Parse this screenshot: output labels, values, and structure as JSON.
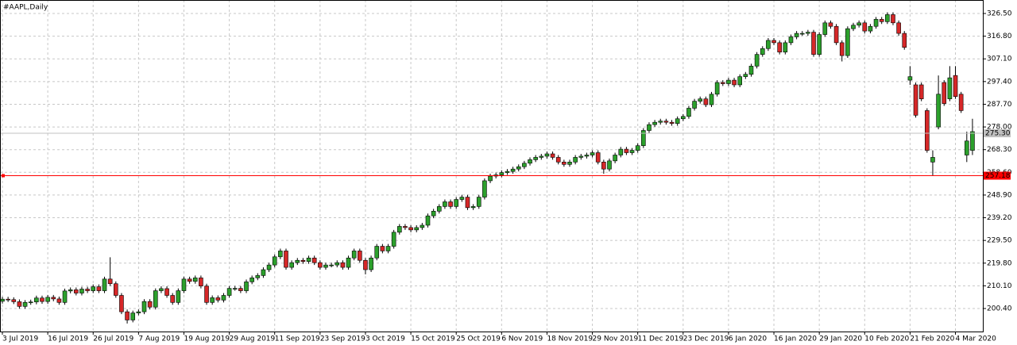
{
  "chart_data": {
    "type": "candlestick",
    "title": "#AAPL,Daily",
    "categories": [
      "3 Jul 2019",
      null,
      null,
      null,
      null,
      null,
      null,
      null,
      "16 Jul 2019",
      null,
      null,
      null,
      null,
      null,
      null,
      null,
      "26 Jul 2019",
      null,
      null,
      null,
      null,
      null,
      null,
      null,
      "7 Aug 2019",
      null,
      null,
      null,
      null,
      null,
      null,
      null,
      "19 Aug 2019",
      null,
      null,
      null,
      null,
      null,
      null,
      null,
      "29 Aug 2019",
      null,
      null,
      null,
      null,
      null,
      null,
      null,
      "11 Sep 2019",
      null,
      null,
      null,
      null,
      null,
      null,
      null,
      "23 Sep 2019",
      null,
      null,
      null,
      null,
      null,
      null,
      null,
      "3 Oct 2019",
      null,
      null,
      null,
      null,
      null,
      null,
      null,
      "15 Oct 2019",
      null,
      null,
      null,
      null,
      null,
      null,
      null,
      "25 Oct 2019",
      null,
      null,
      null,
      null,
      null,
      null,
      null,
      "6 Nov 2019",
      null,
      null,
      null,
      null,
      null,
      null,
      null,
      "18 Nov 2019",
      null,
      null,
      null,
      null,
      null,
      null,
      null,
      "29 Nov 2019",
      null,
      null,
      null,
      null,
      null,
      null,
      null,
      "11 Dec 2019",
      null,
      null,
      null,
      null,
      null,
      null,
      null,
      "23 Dec 2019",
      null,
      null,
      null,
      null,
      null,
      null,
      null,
      "6 Jan 2020",
      null,
      null,
      null,
      null,
      null,
      null,
      null,
      "16 Jan 2020",
      null,
      null,
      null,
      null,
      null,
      null,
      null,
      "29 Jan 2020",
      null,
      null,
      null,
      null,
      null,
      null,
      null,
      "10 Feb 2020",
      null,
      null,
      null,
      null,
      null,
      null,
      null,
      "21 Feb 2020",
      null,
      null,
      null,
      null,
      null,
      null,
      null,
      "4 Mar 2020",
      null,
      null,
      null
    ],
    "open": [
      203.5,
      204.4,
      204.2,
      203.3,
      201.3,
      203.0,
      203.2,
      204.9,
      203.4,
      205.2,
      204.5,
      203.0,
      207.9,
      208.4,
      207.0,
      208.7,
      208.0,
      209.7,
      208.0,
      213.0,
      211.0,
      206.0,
      199.0,
      195.5,
      198.5,
      199.0,
      203.4,
      201.0,
      208.0,
      208.9,
      206.0,
      203.0,
      208.0,
      213.0,
      212.0,
      213.5,
      210.0,
      203.0,
      205.0,
      204.0,
      206.0,
      209.0,
      209.0,
      208.0,
      211.8,
      213.5,
      214.5,
      217.0,
      219.0,
      222.5,
      225.0,
      218.0,
      220.0,
      221.0,
      220.5,
      222.0,
      220.0,
      218.0,
      219.0,
      219.0,
      220.0,
      218.0,
      222.0,
      225.0,
      221.0,
      217.0,
      222.0,
      227.0,
      225.0,
      227.0,
      233.0,
      235.5,
      235.0,
      234.0,
      235.0,
      236.0,
      240.0,
      242.0,
      244.0,
      246.0,
      244.0,
      247.0,
      248.0,
      243.5,
      244.0,
      248.0,
      255.0,
      257.0,
      257.5,
      258.5,
      259.0,
      260.0,
      261.0,
      262.5,
      264.0,
      265.0,
      265.5,
      266.5,
      265.0,
      263.0,
      262.0,
      263.0,
      265.0,
      265.5,
      266.0,
      267.0,
      263.0,
      260.0,
      263.5,
      266.0,
      268.5,
      267.0,
      268.0,
      270.0,
      276.5,
      279.0,
      280.0,
      280.5,
      280.0,
      279.5,
      281.5,
      282.5,
      286.0,
      289.0,
      290.0,
      287.5,
      292.0,
      297.0,
      296.5,
      298.0,
      296.0,
      299.5,
      300.5,
      304.0,
      309.0,
      311.5,
      315.0,
      314.0,
      310.0,
      314.0,
      316.5,
      318.0,
      318.0,
      318.5,
      309.0,
      317.5,
      322.5,
      321.0,
      314.0,
      308.5,
      320.0,
      321.5,
      322.5,
      319.0,
      321.0,
      324.0,
      323.0,
      326.0,
      322.5,
      318.0,
      298.0,
      296.0,
      296.0,
      285.0,
      263.0,
      278.0,
      297.0,
      290.0,
      300.0,
      292.0,
      266.0,
      268.0
    ],
    "high": [
      205.4,
      205.4,
      205.2,
      204.3,
      204.0,
      204.2,
      205.9,
      205.9,
      206.2,
      206.2,
      205.5,
      208.9,
      209.4,
      209.4,
      209.7,
      209.7,
      210.7,
      210.7,
      214.0,
      222.3,
      212.0,
      207.0,
      200.0,
      199.5,
      200.0,
      204.4,
      204.4,
      209.0,
      209.9,
      209.9,
      207.0,
      209.0,
      214.0,
      214.0,
      214.5,
      214.5,
      211.0,
      206.0,
      206.0,
      207.0,
      210.0,
      210.0,
      210.0,
      212.8,
      214.5,
      215.5,
      218.0,
      220.0,
      223.5,
      226.0,
      226.0,
      221.0,
      222.0,
      222.0,
      223.0,
      223.0,
      221.0,
      220.0,
      220.0,
      221.0,
      221.0,
      223.0,
      226.0,
      226.0,
      222.0,
      223.0,
      228.0,
      228.0,
      228.0,
      234.0,
      236.5,
      236.5,
      236.0,
      236.0,
      237.0,
      241.0,
      243.0,
      245.0,
      247.0,
      247.0,
      248.0,
      249.0,
      249.0,
      245.0,
      249.0,
      256.0,
      258.0,
      258.5,
      259.5,
      260.0,
      261.0,
      262.0,
      263.5,
      265.0,
      266.0,
      266.5,
      267.5,
      267.5,
      266.0,
      264.0,
      264.0,
      266.0,
      266.5,
      267.0,
      268.0,
      268.0,
      264.0,
      264.5,
      267.0,
      269.5,
      269.5,
      269.0,
      271.0,
      277.5,
      280.0,
      281.0,
      281.5,
      281.5,
      281.0,
      282.5,
      283.5,
      287.0,
      290.0,
      291.0,
      291.0,
      293.0,
      298.0,
      298.0,
      299.0,
      299.0,
      300.5,
      301.5,
      305.0,
      310.0,
      312.5,
      316.0,
      316.0,
      315.0,
      315.0,
      317.5,
      319.0,
      319.0,
      319.5,
      319.5,
      318.5,
      323.5,
      323.5,
      322.0,
      315.0,
      321.0,
      322.5,
      323.5,
      323.5,
      322.0,
      325.0,
      325.0,
      327.0,
      327.0,
      323.5,
      319.0,
      304.0,
      297.0,
      297.0,
      286.0,
      268.0,
      300.0,
      298.0,
      304.0,
      304.0,
      293.0,
      276.0,
      281.5
    ],
    "low": [
      202.5,
      203.2,
      202.3,
      200.3,
      200.3,
      202.0,
      202.2,
      202.4,
      202.4,
      203.5,
      202.0,
      202.0,
      206.9,
      206.0,
      206.0,
      207.0,
      207.0,
      207.0,
      207.0,
      210.0,
      205.0,
      198.0,
      194.0,
      194.5,
      197.5,
      198.0,
      200.0,
      200.0,
      207.0,
      205.0,
      202.0,
      202.0,
      207.0,
      211.0,
      211.0,
      209.0,
      202.0,
      202.0,
      203.0,
      203.0,
      205.0,
      208.0,
      207.0,
      207.0,
      210.8,
      212.5,
      213.5,
      216.0,
      218.0,
      221.5,
      217.0,
      217.0,
      219.0,
      219.5,
      219.5,
      219.0,
      217.0,
      217.0,
      218.0,
      218.0,
      217.0,
      217.0,
      221.0,
      220.0,
      215.0,
      216.0,
      221.0,
      224.0,
      224.0,
      226.0,
      232.0,
      234.0,
      233.0,
      233.0,
      234.0,
      235.0,
      239.0,
      241.0,
      243.0,
      243.0,
      243.0,
      246.0,
      242.5,
      242.5,
      243.0,
      247.0,
      254.0,
      256.0,
      256.5,
      257.5,
      258.0,
      259.0,
      260.0,
      261.5,
      263.0,
      264.0,
      264.5,
      264.0,
      262.0,
      261.0,
      261.0,
      262.0,
      264.0,
      264.5,
      265.0,
      262.0,
      258.0,
      259.0,
      262.5,
      265.0,
      266.0,
      266.0,
      267.0,
      269.0,
      275.5,
      278.0,
      279.0,
      279.0,
      278.5,
      278.5,
      280.5,
      281.5,
      285.0,
      288.0,
      286.5,
      286.5,
      291.0,
      295.5,
      295.5,
      295.0,
      295.0,
      298.5,
      299.5,
      303.0,
      308.0,
      310.5,
      313.0,
      309.0,
      309.0,
      313.0,
      315.5,
      317.0,
      317.0,
      308.0,
      308.0,
      316.5,
      320.0,
      313.0,
      306.0,
      307.5,
      319.0,
      320.5,
      318.0,
      318.0,
      320.0,
      322.0,
      322.0,
      321.5,
      317.0,
      311.0,
      296.0,
      282.0,
      289.0,
      267.0,
      257.2,
      277.0,
      287.0,
      289.0,
      290.0,
      284.0,
      263.0,
      266.0
    ],
    "close": [
      204.4,
      204.2,
      203.3,
      201.3,
      203.0,
      203.2,
      204.9,
      203.4,
      205.2,
      204.5,
      203.0,
      207.9,
      208.4,
      207.0,
      208.7,
      208.0,
      209.7,
      208.0,
      213.0,
      211.0,
      206.0,
      199.0,
      195.5,
      198.5,
      199.0,
      203.4,
      201.0,
      208.0,
      208.9,
      206.0,
      203.0,
      208.0,
      213.0,
      212.0,
      213.5,
      210.0,
      203.0,
      205.0,
      204.0,
      206.0,
      209.0,
      209.0,
      208.0,
      211.8,
      213.5,
      214.5,
      217.0,
      219.0,
      222.5,
      225.0,
      218.0,
      220.0,
      221.0,
      220.5,
      222.0,
      220.0,
      218.0,
      219.0,
      219.0,
      220.0,
      218.0,
      222.0,
      225.0,
      221.0,
      217.0,
      222.0,
      227.0,
      225.0,
      227.0,
      233.0,
      235.5,
      235.0,
      234.0,
      235.0,
      236.0,
      240.0,
      242.0,
      244.0,
      246.0,
      244.0,
      247.0,
      248.0,
      243.5,
      244.0,
      248.0,
      255.0,
      257.0,
      257.5,
      258.5,
      259.0,
      260.0,
      261.0,
      262.5,
      264.0,
      265.0,
      265.5,
      266.5,
      265.0,
      263.0,
      262.0,
      263.0,
      265.0,
      265.5,
      266.0,
      267.0,
      263.0,
      260.0,
      263.5,
      266.0,
      268.5,
      267.0,
      268.0,
      270.0,
      276.5,
      279.0,
      280.0,
      280.5,
      280.0,
      279.5,
      281.5,
      282.5,
      286.0,
      289.0,
      290.0,
      287.5,
      292.0,
      297.0,
      296.5,
      298.0,
      296.0,
      299.5,
      300.5,
      304.0,
      309.0,
      311.5,
      315.0,
      314.0,
      310.0,
      314.0,
      316.5,
      318.0,
      318.0,
      318.5,
      309.0,
      317.5,
      322.5,
      321.0,
      314.0,
      308.5,
      320.0,
      321.5,
      322.5,
      319.0,
      321.0,
      324.0,
      323.0,
      326.0,
      322.5,
      318.0,
      312.0,
      299.5,
      283.0,
      290.0,
      268.0,
      265.0,
      292.0,
      288.0,
      299.0,
      291.0,
      285.0,
      272.0,
      276.0
    ],
    "up_color": "#2ca02c",
    "down_color": "#d62728",
    "ylim": [
      190.57,
      332.26
    ],
    "yticks": [
      {
        "value": 200.4,
        "label": "200.40"
      },
      {
        "value": 210.1,
        "label": "210.10"
      },
      {
        "value": 219.8,
        "label": "219.80"
      },
      {
        "value": 229.5,
        "label": "229.50"
      },
      {
        "value": 239.2,
        "label": "239.20"
      },
      {
        "value": 248.9,
        "label": "248.90"
      },
      {
        "value": 258.6,
        "label": "258.60"
      },
      {
        "value": 268.3,
        "label": "268.30"
      },
      {
        "value": 278,
        "label": "278.00"
      },
      {
        "value": 287.7,
        "label": "287.70"
      },
      {
        "value": 297.4,
        "label": "297.40"
      },
      {
        "value": 307.1,
        "label": "307.10"
      },
      {
        "value": 316.8,
        "label": "316.80"
      },
      {
        "value": 326.5,
        "label": "326.50"
      }
    ],
    "grid": true,
    "hlines": [
      {
        "value": 275.3,
        "label": "275.30",
        "color": "#c0c0c0"
      },
      {
        "value": 257.18,
        "label": "257.18",
        "color": "#ff0000"
      }
    ]
  }
}
